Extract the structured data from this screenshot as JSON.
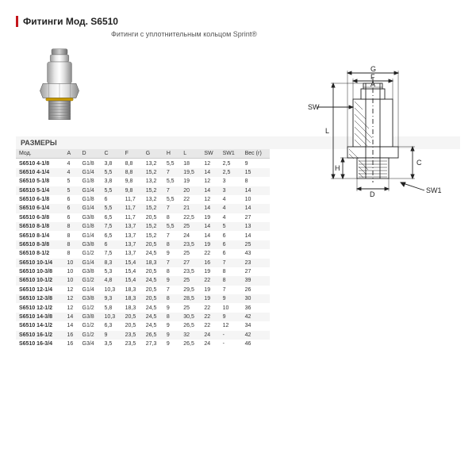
{
  "header": {
    "title": "Фитинги Мод. S6510",
    "subtitle": "Фитинги с уплотнительным кольцом Sprint®"
  },
  "section_label": "РАЗМЕРЫ",
  "columns": [
    "Мод.",
    "A",
    "D",
    "C",
    "F",
    "G",
    "H",
    "L",
    "SW",
    "SW1",
    "Вес (г)"
  ],
  "rows": [
    [
      "S6510 4-1/8",
      "4",
      "G1/8",
      "3,8",
      "8,8",
      "13,2",
      "5,5",
      "18",
      "12",
      "2,5",
      "9"
    ],
    [
      "S6510 4-1/4",
      "4",
      "G1/4",
      "5,5",
      "8,8",
      "15,2",
      "7",
      "19,5",
      "14",
      "2,5",
      "15"
    ],
    [
      "S6510 5-1/8",
      "5",
      "G1/8",
      "3,8",
      "9,8",
      "13,2",
      "5,5",
      "19",
      "12",
      "3",
      "8"
    ],
    [
      "S6510 5-1/4",
      "5",
      "G1/4",
      "5,5",
      "9,8",
      "15,2",
      "7",
      "20",
      "14",
      "3",
      "14"
    ],
    [
      "S6510 6-1/8",
      "6",
      "G1/8",
      "6",
      "11,7",
      "13,2",
      "5,5",
      "22",
      "12",
      "4",
      "10"
    ],
    [
      "S6510 6-1/4",
      "6",
      "G1/4",
      "5,5",
      "11,7",
      "15,2",
      "7",
      "21",
      "14",
      "4",
      "14"
    ],
    [
      "S6510 6-3/8",
      "6",
      "G3/8",
      "6,5",
      "11,7",
      "20,5",
      "8",
      "22,5",
      "19",
      "4",
      "27"
    ],
    [
      "S6510 8-1/8",
      "8",
      "G1/8",
      "7,5",
      "13,7",
      "15,2",
      "5,5",
      "25",
      "14",
      "5",
      "13"
    ],
    [
      "S6510 8-1/4",
      "8",
      "G1/4",
      "6,5",
      "13,7",
      "15,2",
      "7",
      "24",
      "14",
      "6",
      "14"
    ],
    [
      "S6510 8-3/8",
      "8",
      "G3/8",
      "6",
      "13,7",
      "20,5",
      "8",
      "23,5",
      "19",
      "6",
      "25"
    ],
    [
      "S6510 8-1/2",
      "8",
      "G1/2",
      "7,5",
      "13,7",
      "24,5",
      "9",
      "25",
      "22",
      "6",
      "43"
    ],
    [
      "S6510 10-1/4",
      "10",
      "G1/4",
      "8,3",
      "15,4",
      "18,3",
      "7",
      "27",
      "16",
      "7",
      "23"
    ],
    [
      "S6510 10-3/8",
      "10",
      "G3/8",
      "5,3",
      "15,4",
      "20,5",
      "8",
      "23,5",
      "19",
      "8",
      "27"
    ],
    [
      "S6510 10-1/2",
      "10",
      "G1/2",
      "4,8",
      "15,4",
      "24,5",
      "9",
      "25",
      "22",
      "8",
      "39"
    ],
    [
      "S6510 12-1/4",
      "12",
      "G1/4",
      "10,3",
      "18,3",
      "20,5",
      "7",
      "29,5",
      "19",
      "7",
      "26"
    ],
    [
      "S6510 12-3/8",
      "12",
      "G3/8",
      "9,3",
      "18,3",
      "20,5",
      "8",
      "28,5",
      "19",
      "9",
      "30"
    ],
    [
      "S6510 12-1/2",
      "12",
      "G1/2",
      "5,8",
      "18,3",
      "24,5",
      "9",
      "25",
      "22",
      "10",
      "36"
    ],
    [
      "S6510 14-3/8",
      "14",
      "G3/8",
      "10,3",
      "20,5",
      "24,5",
      "8",
      "30,5",
      "22",
      "9",
      "42"
    ],
    [
      "S6510 14-1/2",
      "14",
      "G1/2",
      "6,3",
      "20,5",
      "24,5",
      "9",
      "26,5",
      "22",
      "12",
      "34"
    ],
    [
      "S6510 16-1/2",
      "16",
      "G1/2",
      "9",
      "23,5",
      "26,5",
      "9",
      "32",
      "24",
      "-",
      "42"
    ],
    [
      "S6510 16-3/4",
      "16",
      "G3/4",
      "3,5",
      "23,5",
      "27,3",
      "9",
      "26,5",
      "24",
      "-",
      "46"
    ]
  ],
  "diagram_labels": {
    "G": "G",
    "F": "F",
    "A": "A",
    "SW": "SW",
    "L": "L",
    "H": "H",
    "C": "C",
    "D": "D",
    "SW1": "SW1"
  },
  "colors": {
    "accent": "#c4161c",
    "header_bg": "#e8e8e8",
    "row_alt": "#f5f5f5",
    "text": "#333333",
    "line": "#222222"
  }
}
